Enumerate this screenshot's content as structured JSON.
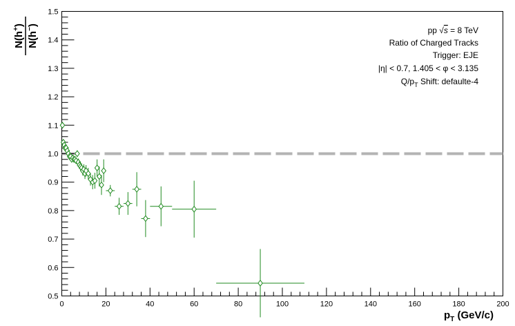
{
  "chart_data": {
    "type": "scatter",
    "title": "",
    "xlabel": "p",
    "xlabel_sub": "T",
    "xlabel_unit": "(GeV/c)",
    "ylabel": {
      "numerator_base": "N(h",
      "numerator_sup": "+",
      "numerator_close": ")",
      "denominator_base": "N(h",
      "denominator_sup": "−",
      "denominator_close": ")"
    },
    "xlim": [
      0,
      200
    ],
    "ylim": [
      0.5,
      1.5
    ],
    "xticks": [
      0,
      20,
      40,
      60,
      80,
      100,
      120,
      140,
      160,
      180,
      200
    ],
    "yticks": [
      0.5,
      0.6,
      0.7,
      0.8,
      0.9,
      1.0,
      1.1,
      1.2,
      1.3,
      1.4,
      1.5
    ],
    "xtick_labels": [
      "0",
      "20",
      "40",
      "60",
      "80",
      "100",
      "120",
      "140",
      "160",
      "180",
      "200"
    ],
    "ytick_labels": [
      "0.5",
      "0.6",
      "0.7",
      "0.8",
      "0.9",
      "1.0",
      "1.1",
      "1.2",
      "1.3",
      "1.4",
      "1.5"
    ],
    "reference_line": {
      "y": 1.0,
      "style": "dashed",
      "color": "#b3b3b3"
    },
    "series": [
      {
        "name": "Ratio of Charged Tracks",
        "color": "#1f8a1f",
        "marker": "open-diamond",
        "points": [
          {
            "x": 0.3,
            "y": 1.1,
            "xerr": 0.2,
            "yerr": 0.006
          },
          {
            "x": 0.7,
            "y": 1.04,
            "xerr": 0.2,
            "yerr": 0.004
          },
          {
            "x": 1.1,
            "y": 1.03,
            "xerr": 0.2,
            "yerr": 0.004
          },
          {
            "x": 1.5,
            "y": 1.02,
            "xerr": 0.2,
            "yerr": 0.004
          },
          {
            "x": 2.0,
            "y": 1.02,
            "xerr": 0.25,
            "yerr": 0.004
          },
          {
            "x": 2.5,
            "y": 1.01,
            "xerr": 0.25,
            "yerr": 0.005
          },
          {
            "x": 3.0,
            "y": 1.0,
            "xerr": 0.25,
            "yerr": 0.005
          },
          {
            "x": 3.5,
            "y": 0.99,
            "xerr": 0.25,
            "yerr": 0.006
          },
          {
            "x": 4.0,
            "y": 0.99,
            "xerr": 0.25,
            "yerr": 0.006
          },
          {
            "x": 4.5,
            "y": 0.98,
            "xerr": 0.25,
            "yerr": 0.007
          },
          {
            "x": 5.0,
            "y": 0.985,
            "xerr": 0.25,
            "yerr": 0.008
          },
          {
            "x": 5.5,
            "y": 0.98,
            "xerr": 0.25,
            "yerr": 0.009
          },
          {
            "x": 6.0,
            "y": 0.98,
            "xerr": 0.25,
            "yerr": 0.01
          },
          {
            "x": 6.5,
            "y": 0.975,
            "xerr": 0.25,
            "yerr": 0.011
          },
          {
            "x": 7.0,
            "y": 1.0,
            "xerr": 0.25,
            "yerr": 0.012
          },
          {
            "x": 7.5,
            "y": 0.97,
            "xerr": 0.25,
            "yerr": 0.013
          },
          {
            "x": 8.0,
            "y": 0.96,
            "xerr": 0.25,
            "yerr": 0.014
          },
          {
            "x": 8.5,
            "y": 0.955,
            "xerr": 0.25,
            "yerr": 0.015
          },
          {
            "x": 9.0,
            "y": 0.95,
            "xerr": 0.25,
            "yerr": 0.016
          },
          {
            "x": 9.5,
            "y": 0.94,
            "xerr": 0.25,
            "yerr": 0.017
          },
          {
            "x": 10.0,
            "y": 0.945,
            "xerr": 0.25,
            "yerr": 0.018
          },
          {
            "x": 10.5,
            "y": 0.93,
            "xerr": 0.25,
            "yerr": 0.019
          },
          {
            "x": 11.0,
            "y": 0.94,
            "xerr": 0.25,
            "yerr": 0.02
          },
          {
            "x": 12.0,
            "y": 0.93,
            "xerr": 0.5,
            "yerr": 0.02
          },
          {
            "x": 13.0,
            "y": 0.91,
            "xerr": 0.5,
            "yerr": 0.022
          },
          {
            "x": 14.0,
            "y": 0.9,
            "xerr": 0.5,
            "yerr": 0.025
          },
          {
            "x": 15.0,
            "y": 0.905,
            "xerr": 0.5,
            "yerr": 0.028
          },
          {
            "x": 16.0,
            "y": 0.95,
            "xerr": 0.5,
            "yerr": 0.03
          },
          {
            "x": 17.0,
            "y": 0.92,
            "xerr": 0.5,
            "yerr": 0.035
          },
          {
            "x": 18.0,
            "y": 0.89,
            "xerr": 0.5,
            "yerr": 0.035
          },
          {
            "x": 19.0,
            "y": 0.94,
            "xerr": 0.5,
            "yerr": 0.04
          },
          {
            "x": 22.0,
            "y": 0.87,
            "xerr": 2.0,
            "yerr": 0.02
          },
          {
            "x": 26.0,
            "y": 0.815,
            "xerr": 2.0,
            "yerr": 0.03
          },
          {
            "x": 30.0,
            "y": 0.825,
            "xerr": 2.0,
            "yerr": 0.04
          },
          {
            "x": 34.0,
            "y": 0.875,
            "xerr": 2.0,
            "yerr": 0.06
          },
          {
            "x": 38.0,
            "y": 0.772,
            "xerr": 2.0,
            "yerr": 0.065
          },
          {
            "x": 45.0,
            "y": 0.815,
            "xerr": 5.0,
            "yerr": 0.07
          },
          {
            "x": 60.0,
            "y": 0.805,
            "xerr": 10.0,
            "yerr": 0.1
          },
          {
            "x": 90.0,
            "y": 0.545,
            "xerr": 20.0,
            "yerr": 0.12
          }
        ]
      }
    ],
    "legend_lines": [
      {
        "id": "energy",
        "prefix": "pp  ",
        "sqrt": "√",
        "s": "s",
        "suffix": " = 8 TeV"
      },
      {
        "id": "title",
        "text": "Ratio of Charged Tracks"
      },
      {
        "id": "trigger",
        "text": "Trigger: EJE"
      },
      {
        "id": "acceptance",
        "text": "|η| < 0.7, 1.405 < φ < 3.135"
      },
      {
        "id": "shift",
        "prefix": "Q/p",
        "sub": "T",
        "suffix": " Shift: defaulte-4"
      }
    ],
    "legend_position": "top-right"
  },
  "colors": {
    "series": "#1f8a1f",
    "reference": "#b3b3b3",
    "axis": "#000000"
  }
}
